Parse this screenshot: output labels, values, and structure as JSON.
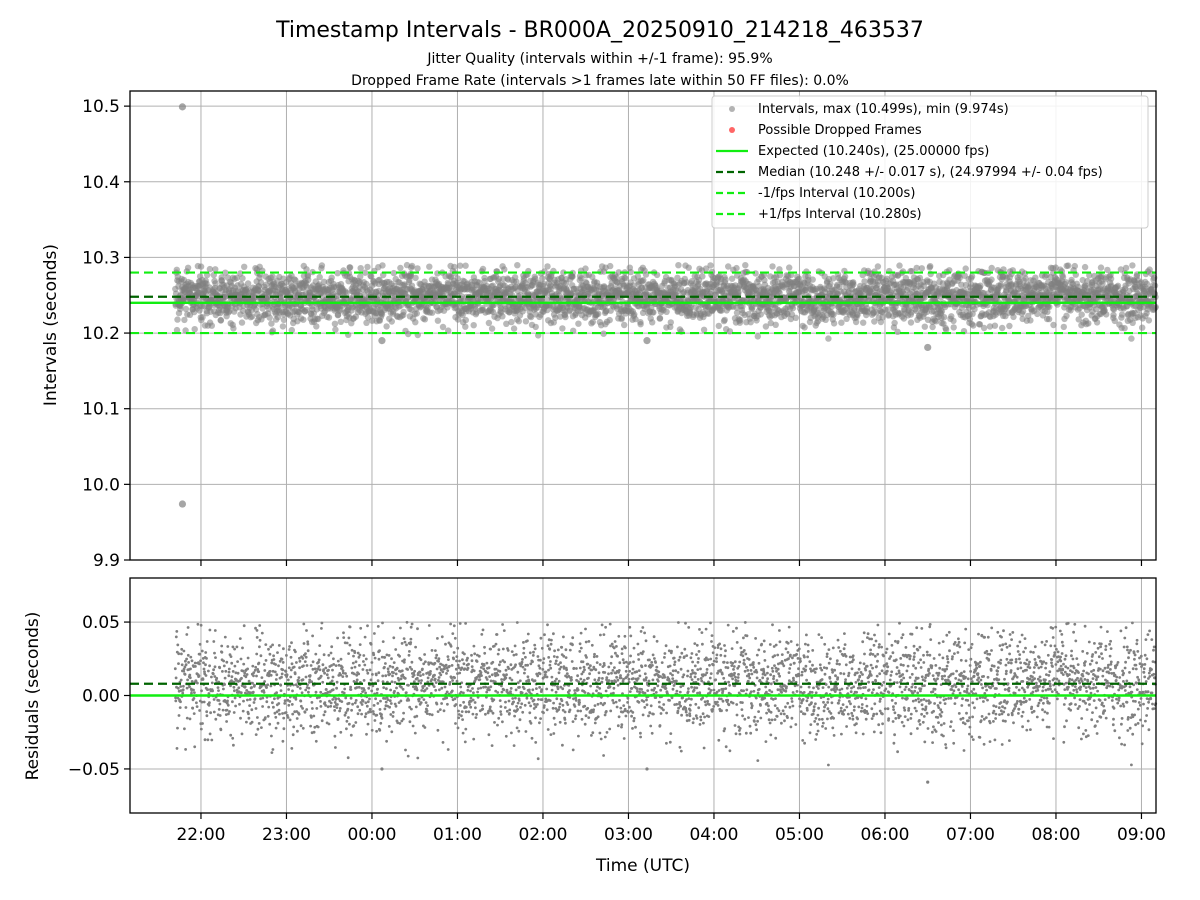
{
  "chart_data": {
    "type": "scatter",
    "title": "Timestamp Intervals - BR000A_20250910_214218_463537",
    "subtitles": [
      "Jitter Quality (intervals within +/-1 frame): 95.9%",
      "Dropped Frame Rate (intervals >1 frames late within 50 FF files): 0.0%"
    ],
    "xlabel": "Time (UTC)",
    "x_ticks": [
      "22:00",
      "23:00",
      "00:00",
      "01:00",
      "02:00",
      "03:00",
      "04:00",
      "05:00",
      "06:00",
      "07:00",
      "08:00",
      "09:00"
    ],
    "grid": true,
    "legend_position": "top-right",
    "colors": {
      "points": "#808080",
      "dropped": "#ff6666",
      "expected": "#11ee11",
      "median": "#006400",
      "limits": "#11ee11"
    },
    "panels": [
      {
        "name": "intervals",
        "ylabel": "Intervals (seconds)",
        "ylim": [
          9.9,
          10.52
        ],
        "y_ticks": [
          "9.9",
          "10.0",
          "10.1",
          "10.2",
          "10.3",
          "10.4",
          "10.5"
        ],
        "y_tick_values": [
          9.9,
          10.0,
          10.1,
          10.2,
          10.3,
          10.4,
          10.5
        ],
        "hlines": {
          "expected": 10.24,
          "median": 10.248,
          "lower": 10.2,
          "upper": 10.28
        },
        "outliers": [
          {
            "t": "21:47",
            "value": 10.499
          },
          {
            "t": "21:47",
            "value": 9.974
          },
          {
            "t": "00:07",
            "value": 10.19
          },
          {
            "t": "03:13",
            "value": 10.19
          },
          {
            "t": "06:30",
            "value": 10.181
          }
        ],
        "legend": [
          "Intervals, max (10.499s), min (9.974s)",
          "Possible Dropped Frames",
          "Expected (10.240s), (25.00000 fps)",
          "Median (10.248 +/- 0.017 s), (24.97994 +/- 0.04 fps)",
          "-1/fps Interval (10.200s)",
          "+1/fps Interval (10.280s)"
        ]
      },
      {
        "name": "residuals",
        "ylabel": "Residuals (seconds)",
        "ylim": [
          -0.08,
          0.08
        ],
        "y_ticks": [
          "−0.05",
          "0.00",
          "0.05"
        ],
        "y_tick_values": [
          -0.05,
          0.0,
          0.05
        ],
        "hlines": {
          "expected": 0.0,
          "median": 0.008
        }
      }
    ],
    "series_summary": {
      "start": "21:42",
      "end": "09:10",
      "sample_count": 4000,
      "center": 10.248,
      "spread": 0.017
    }
  }
}
